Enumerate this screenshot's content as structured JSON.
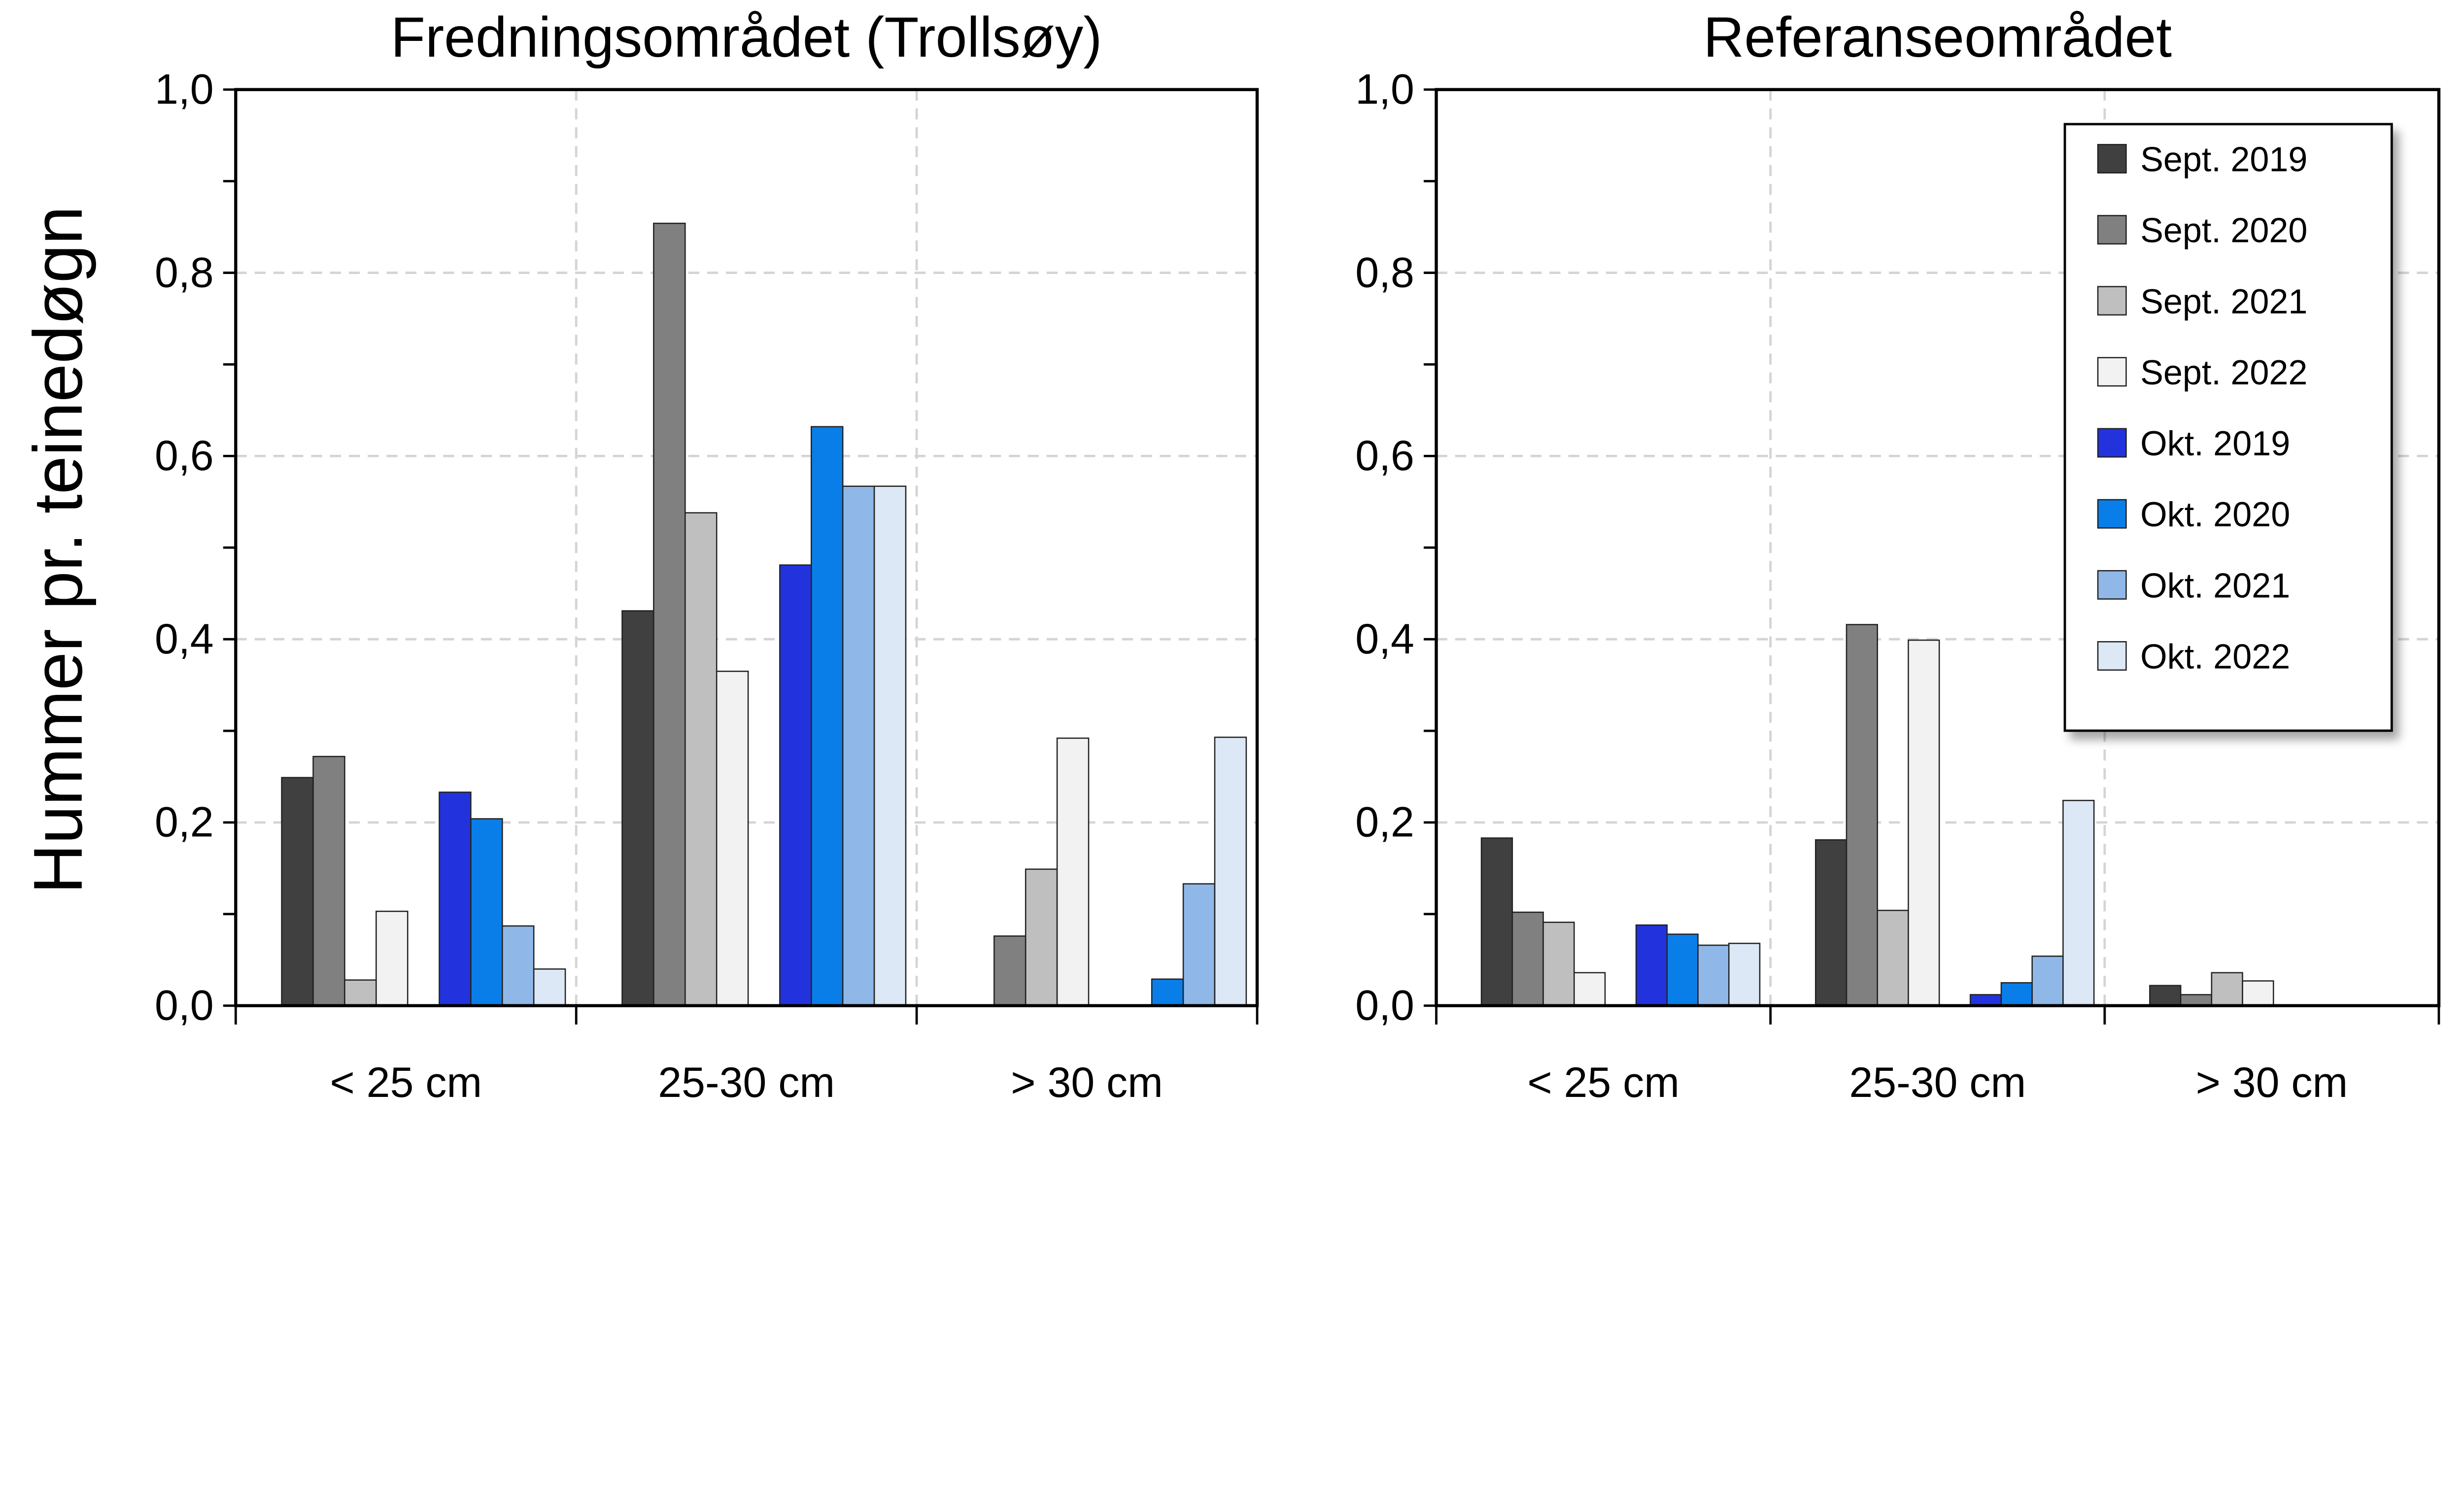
{
  "chart_data": [
    {
      "type": "bar",
      "title": "Fredningsområdet (Trollsøy)",
      "ylabel": "Hummer pr. teinedøgn",
      "xlabel": "",
      "ylim": [
        0,
        1.0
      ],
      "yticks": [
        "0,0",
        "0,2",
        "0,4",
        "0,6",
        "0,8",
        "1,0"
      ],
      "grid": true,
      "categories": [
        "< 25 cm",
        "25-30 cm",
        "> 30 cm"
      ],
      "series": [
        {
          "name": "Sept. 2019",
          "color": "#404040",
          "values": [
            0.249,
            0.431,
            0.0
          ]
        },
        {
          "name": "Sept. 2020",
          "color": "#808080",
          "values": [
            0.272,
            0.854,
            0.076
          ]
        },
        {
          "name": "Sept. 2021",
          "color": "#bfbfbf",
          "values": [
            0.028,
            0.538,
            0.149
          ]
        },
        {
          "name": "Sept. 2022",
          "color": "#f2f2f2",
          "values": [
            0.103,
            0.365,
            0.292
          ]
        },
        {
          "name": "Okt. 2019",
          "color": "#2233dd",
          "values": [
            0.233,
            0.481,
            0.0
          ]
        },
        {
          "name": "Okt. 2020",
          "color": "#0a7ee8",
          "values": [
            0.204,
            0.632,
            0.029
          ]
        },
        {
          "name": "Okt. 2021",
          "color": "#8fb8e8",
          "values": [
            0.087,
            0.567,
            0.133
          ]
        },
        {
          "name": "Okt. 2022",
          "color": "#dce8f5",
          "values": [
            0.04,
            0.567,
            0.293
          ]
        }
      ]
    },
    {
      "type": "bar",
      "title": "Referanseområdet",
      "ylim": [
        0,
        1.0
      ],
      "yticks": [
        "0,0",
        "0,2",
        "0,4",
        "0,6",
        "0,8",
        "1,0"
      ],
      "grid": true,
      "legend": "top-right",
      "categories": [
        "< 25 cm",
        "25-30 cm",
        "> 30 cm"
      ],
      "series": [
        {
          "name": "Sept. 2019",
          "color": "#404040",
          "values": [
            0.183,
            0.181,
            0.022
          ]
        },
        {
          "name": "Sept. 2020",
          "color": "#808080",
          "values": [
            0.102,
            0.416,
            0.012
          ]
        },
        {
          "name": "Sept. 2021",
          "color": "#bfbfbf",
          "values": [
            0.091,
            0.104,
            0.036
          ]
        },
        {
          "name": "Sept. 2022",
          "color": "#f2f2f2",
          "values": [
            0.036,
            0.399,
            0.027
          ]
        },
        {
          "name": "Okt. 2019",
          "color": "#2233dd",
          "values": [
            0.088,
            0.012,
            0.0
          ]
        },
        {
          "name": "Okt. 2020",
          "color": "#0a7ee8",
          "values": [
            0.078,
            0.025,
            0.0
          ]
        },
        {
          "name": "Okt. 2021",
          "color": "#8fb8e8",
          "values": [
            0.066,
            0.054,
            0.0
          ]
        },
        {
          "name": "Okt. 2022",
          "color": "#dce8f5",
          "values": [
            0.068,
            0.224,
            0.0
          ]
        }
      ]
    }
  ]
}
